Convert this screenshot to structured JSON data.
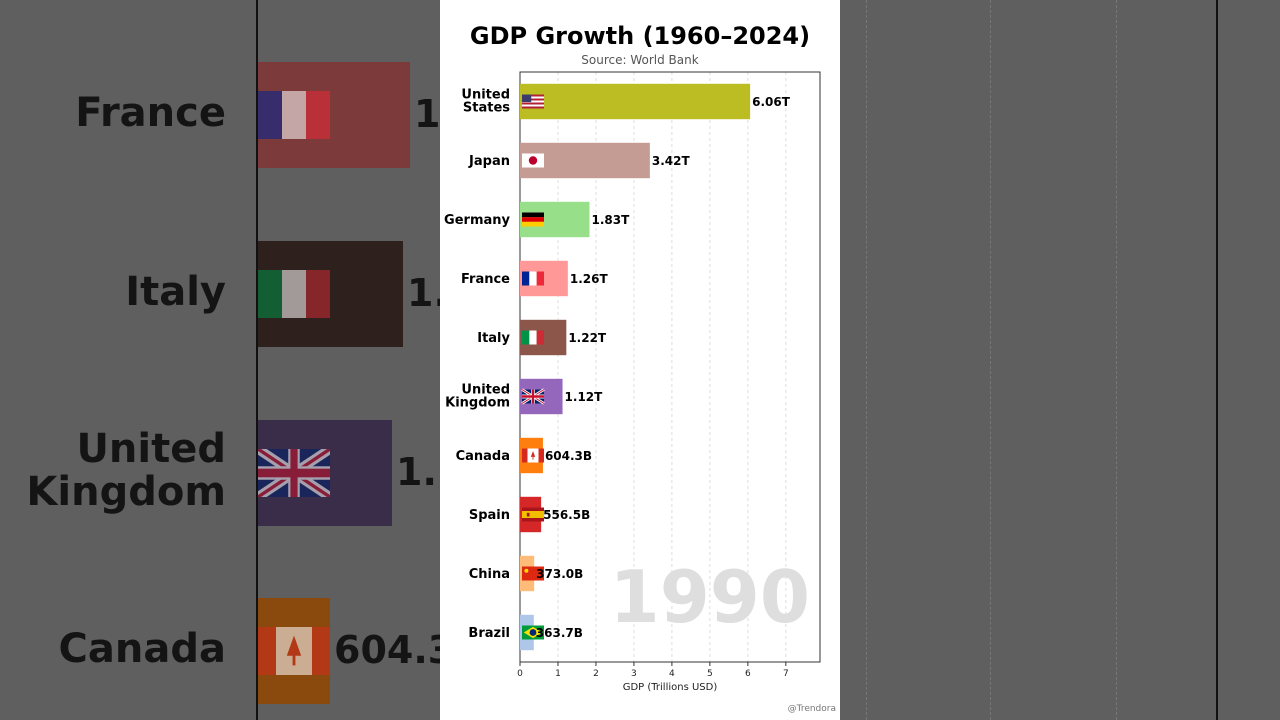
{
  "title": "GDP Growth (1960–2024)",
  "subtitle": "Source: World Bank",
  "watermark": "@Trendora",
  "year": "1990",
  "background_blur": {
    "items": [
      {
        "label": "France",
        "value_text": "1",
        "color": "#7d3a3a",
        "flag": "fr"
      },
      {
        "label": "Italy",
        "value_text": "1.",
        "color": "#2e201c",
        "flag": "it"
      },
      {
        "label": "United Kingdom",
        "value_text": "1.",
        "color": "#3a2d4a",
        "flag": "gb"
      },
      {
        "label": "Canada",
        "value_text": "604.3",
        "color": "#8a4a0e",
        "flag": "ca"
      }
    ]
  },
  "chart_data": {
    "type": "bar",
    "orientation": "horizontal",
    "title": "GDP Growth (1960–2024)",
    "subtitle": "Source: World Bank",
    "xlabel": "GDP (Trillions USD)",
    "ylabel": "",
    "xlim": [
      0,
      7.9
    ],
    "xticks": [
      0,
      1,
      2,
      3,
      4,
      5,
      6,
      7
    ],
    "grid": "vertical dashed",
    "categories": [
      "United States",
      "Japan",
      "Germany",
      "France",
      "Italy",
      "United Kingdom",
      "Canada",
      "Spain",
      "China",
      "Brazil"
    ],
    "values": [
      6.06,
      3.42,
      1.83,
      1.26,
      1.22,
      1.12,
      0.6043,
      0.5565,
      0.373,
      0.3637
    ],
    "value_labels": [
      "6.06T",
      "3.42T",
      "1.83T",
      "1.26T",
      "1.22T",
      "1.12T",
      "604.3B",
      "556.5B",
      "373.0B",
      "363.7B"
    ],
    "colors": [
      "#bcbd22",
      "#c49c94",
      "#98df8a",
      "#ff9896",
      "#8c564b",
      "#9467bd",
      "#ff7f0e",
      "#d62728",
      "#ffbb78",
      "#aec7e8"
    ],
    "flags": [
      "us",
      "jp",
      "de",
      "fr",
      "it",
      "gb",
      "ca",
      "es",
      "cn",
      "br"
    ]
  }
}
